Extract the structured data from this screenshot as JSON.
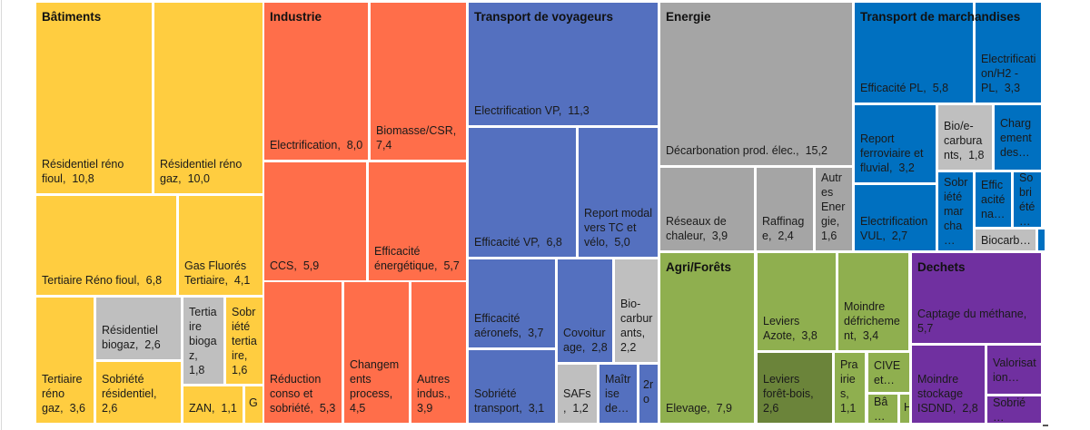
{
  "chart_data": {
    "type": "treemap",
    "groups": [
      {
        "name": "Bâtiments",
        "color": "#FFCD40",
        "items": [
          {
            "label": "Résidentiel réno fioul",
            "value": "10,8"
          },
          {
            "label": "Résidentiel réno gaz",
            "value": "10,0"
          },
          {
            "label": "Tertiaire Réno fioul",
            "value": "6,8"
          },
          {
            "label": "Gas Fluorés Tertiaire",
            "value": "4,1"
          },
          {
            "label": "Tertiaire réno gaz",
            "value": "3,6"
          },
          {
            "label": "Résidentiel biogaz",
            "value": "2,6",
            "color": "#BFBFBF"
          },
          {
            "label": "Sobriété résidentiel",
            "value": "2,6"
          },
          {
            "label": "Tertiaire biogaz",
            "value": "1,8",
            "color": "#BFBFBF"
          },
          {
            "label": "Sobriété tertiaire",
            "value": "1,6"
          },
          {
            "label": "ZAN",
            "value": "1,1"
          },
          {
            "label": "G"
          }
        ]
      },
      {
        "name": "Industrie",
        "color": "#FF6E4A",
        "items": [
          {
            "label": "Electrification",
            "value": "8,0"
          },
          {
            "label": "Biomasse/CSR",
            "value": "7,4"
          },
          {
            "label": "CCS",
            "value": "5,9"
          },
          {
            "label": "Efficacité énergétique",
            "value": "5,7"
          },
          {
            "label": "Réduction conso et sobriété",
            "value": "5,3"
          },
          {
            "label": "Changements process",
            "value": "4,5"
          },
          {
            "label": "Autres indus.",
            "value": "3,9"
          }
        ]
      },
      {
        "name": "Transport de voyageurs",
        "color": "#5470BF",
        "items": [
          {
            "label": "Electrification VP",
            "value": "11,3"
          },
          {
            "label": "Efficacité VP",
            "value": "6,8"
          },
          {
            "label": "Report modal vers TC et vélo",
            "value": "5,0"
          },
          {
            "label": "Efficacité aéronefs",
            "value": "3,7"
          },
          {
            "label": "Sobriété transport",
            "value": "3,1"
          },
          {
            "label": "Covoiturage",
            "value": "2,8"
          },
          {
            "label": "Bio-carburants",
            "value": "2,2",
            "color": "#BFBFBF"
          },
          {
            "label": "SAFs",
            "value": "1,2",
            "color": "#BFBFBF"
          },
          {
            "label": "Maîtrise de…"
          },
          {
            "label": "2ro"
          }
        ]
      },
      {
        "name": "Energie",
        "color": "#A5A5A5",
        "items": [
          {
            "label": "Décarbonation prod. élec.",
            "value": "15,2"
          },
          {
            "label": "Réseaux de chaleur",
            "value": "3,9"
          },
          {
            "label": "Raffinage",
            "value": "2,4"
          },
          {
            "label": "Autres Energie",
            "value": "1,6"
          }
        ]
      },
      {
        "name": "Transport de marchandises",
        "color": "#0070C0",
        "items": [
          {
            "label": "Efficacité PL",
            "value": "5,8"
          },
          {
            "label": "Electrification/H2 - PL",
            "value": "3,3"
          },
          {
            "label": "Report ferroviaire et fluvial",
            "value": "3,2"
          },
          {
            "label": "Electrification VUL",
            "value": "2,7"
          },
          {
            "label": "Bio/e-carburants",
            "value": "1,8",
            "color": "#BFBFBF"
          },
          {
            "label": "Chargement des…"
          },
          {
            "label": "Sobriété marcha…"
          },
          {
            "label": "Efficacité na…"
          },
          {
            "label": "Sobriété…"
          },
          {
            "label": "Biocarb…",
            "color": "#BFBFBF"
          },
          {
            "label": ""
          }
        ]
      },
      {
        "name": "Agri/Forêts",
        "color": "#8FAF4F",
        "items": [
          {
            "label": "Elevage",
            "value": "7,9"
          },
          {
            "label": "Leviers Azote",
            "value": "3,8"
          },
          {
            "label": "Moindre défrichement",
            "value": "3,4"
          },
          {
            "label": "Leviers forêt-bois",
            "value": "2,6",
            "color": "#6B843A"
          },
          {
            "label": "Prairies",
            "value": "1,1"
          },
          {
            "label": "CIVE et…"
          },
          {
            "label": "Bâ…"
          },
          {
            "label": "H"
          }
        ]
      },
      {
        "name": "Dechets",
        "color": "#7030A0",
        "items": [
          {
            "label": "Captage du méthane",
            "value": "5,7"
          },
          {
            "label": "Moindre stockage ISDND",
            "value": "2,8"
          },
          {
            "label": "Valorisation…"
          },
          {
            "label": "Sobrié…"
          }
        ]
      }
    ]
  }
}
